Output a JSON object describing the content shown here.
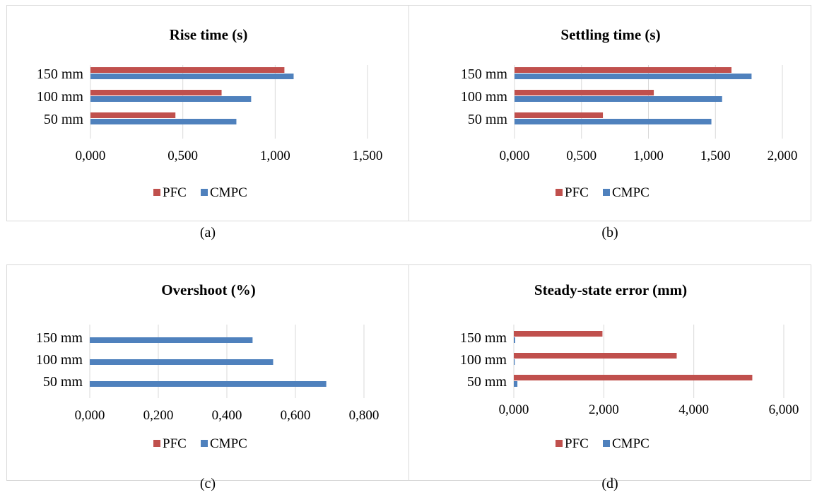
{
  "colors": {
    "PFC": "#c0504d",
    "CMPC": "#4f81bd",
    "grid": "#d9d9d9",
    "border": "#d9d9d9"
  },
  "chart_data": [
    {
      "type": "bar",
      "orientation": "horizontal",
      "title": "Rise time (s)",
      "caption": "(a)",
      "categories": [
        "50 mm",
        "100 mm",
        "150 mm"
      ],
      "series": [
        {
          "name": "PFC",
          "values": [
            0.46,
            0.71,
            1.05
          ]
        },
        {
          "name": "CMPC",
          "values": [
            0.79,
            0.87,
            1.1
          ]
        }
      ],
      "xlim": [
        0,
        1.5
      ],
      "ticks": [
        0,
        0.5,
        1.0,
        1.5
      ],
      "tick_labels": [
        "0,000",
        "0,500",
        "1,000",
        "1,500"
      ],
      "grid": true,
      "legend": "bottom"
    },
    {
      "type": "bar",
      "orientation": "horizontal",
      "title": "Settling time (s)",
      "caption": "(b)",
      "categories": [
        "50 mm",
        "100 mm",
        "150 mm"
      ],
      "series": [
        {
          "name": "PFC",
          "values": [
            0.66,
            1.04,
            1.62
          ]
        },
        {
          "name": "CMPC",
          "values": [
            1.47,
            1.55,
            1.77
          ]
        }
      ],
      "xlim": [
        0,
        2.0
      ],
      "ticks": [
        0,
        0.5,
        1.0,
        1.5,
        2.0
      ],
      "tick_labels": [
        "0,000",
        "0,500",
        "1,000",
        "1,500",
        "2,000"
      ],
      "grid": true,
      "legend": "bottom"
    },
    {
      "type": "bar",
      "orientation": "horizontal",
      "title": "Overshoot (%)",
      "caption": "(c)",
      "categories": [
        "50 mm",
        "100 mm",
        "150 mm"
      ],
      "series": [
        {
          "name": "PFC",
          "values": [
            0,
            0,
            0
          ]
        },
        {
          "name": "CMPC",
          "values": [
            0.69,
            0.535,
            0.475
          ]
        }
      ],
      "xlim": [
        0,
        0.8
      ],
      "ticks": [
        0,
        0.2,
        0.4,
        0.6,
        0.8
      ],
      "tick_labels": [
        "0,000",
        "0,200",
        "0,400",
        "0,600",
        "0,800"
      ],
      "grid": true,
      "legend": "bottom"
    },
    {
      "type": "bar",
      "orientation": "horizontal",
      "title": "Steady-state error (mm)",
      "caption": "(d)",
      "categories": [
        "50 mm",
        "100 mm",
        "150 mm"
      ],
      "series": [
        {
          "name": "PFC",
          "values": [
            5.3,
            3.62,
            1.97
          ]
        },
        {
          "name": "CMPC",
          "values": [
            0.08,
            0.02,
            0.03
          ]
        }
      ],
      "xlim": [
        0,
        6.0
      ],
      "ticks": [
        0,
        2.0,
        4.0,
        6.0
      ],
      "tick_labels": [
        "0,000",
        "2,000",
        "4,000",
        "6,000"
      ],
      "grid": true,
      "legend": "bottom"
    }
  ]
}
